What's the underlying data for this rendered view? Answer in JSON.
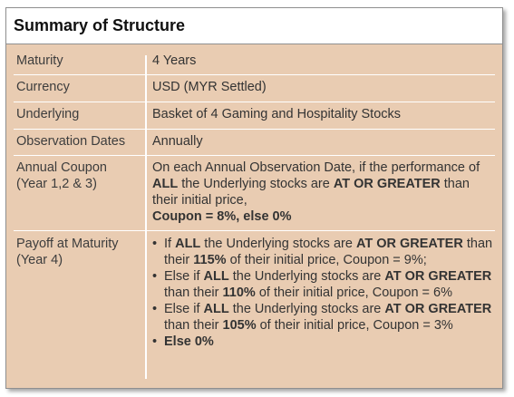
{
  "title": "Summary of Structure",
  "rows": [
    {
      "label": "Maturity",
      "value": "4 Years"
    },
    {
      "label": "Currency",
      "value": "USD (MYR Settled)"
    },
    {
      "label": "Underlying",
      "value": "Basket of 4 Gaming and Hospitality Stocks"
    },
    {
      "label": "Observation Dates",
      "value": "Annually"
    }
  ],
  "coupon": {
    "label_line1": "Annual Coupon",
    "label_line2": "(Year 1,2 & 3)",
    "text1": "On each Annual Observation Date, if the performance of ",
    "bold1": "ALL",
    "text2": " the Underlying stocks are ",
    "bold2": "AT OR GREATER",
    "text3": " than their initial price,",
    "bold_result": "Coupon = 8%, else 0%"
  },
  "payoff": {
    "label_line1": "Payoff at Maturity",
    "label_line2": "(Year 4)",
    "bullet1": {
      "t1": "If ",
      "b1": "ALL",
      "t2": " the Underlying stocks are ",
      "b2": "AT OR GREATER",
      "t3": " than their ",
      "b3": "115%",
      "t4": " of their initial price, Coupon = 9%;"
    },
    "bullet2": {
      "t1": "Else if ",
      "b1": "ALL",
      "t2": " the Underlying stocks are ",
      "b2": "AT OR GREATER",
      "t3": " than their ",
      "b3": "110%",
      "t4": " of their initial price, Coupon = 6%"
    },
    "bullet3": {
      "t1": "Else if ",
      "b1": "ALL",
      "t2": " the Underlying stocks are ",
      "b2": "AT OR GREATER",
      "t3": " than their ",
      "b3": "105%",
      "t4": " of their initial price, Coupon = 3%"
    },
    "bullet4": "Else 0%"
  }
}
